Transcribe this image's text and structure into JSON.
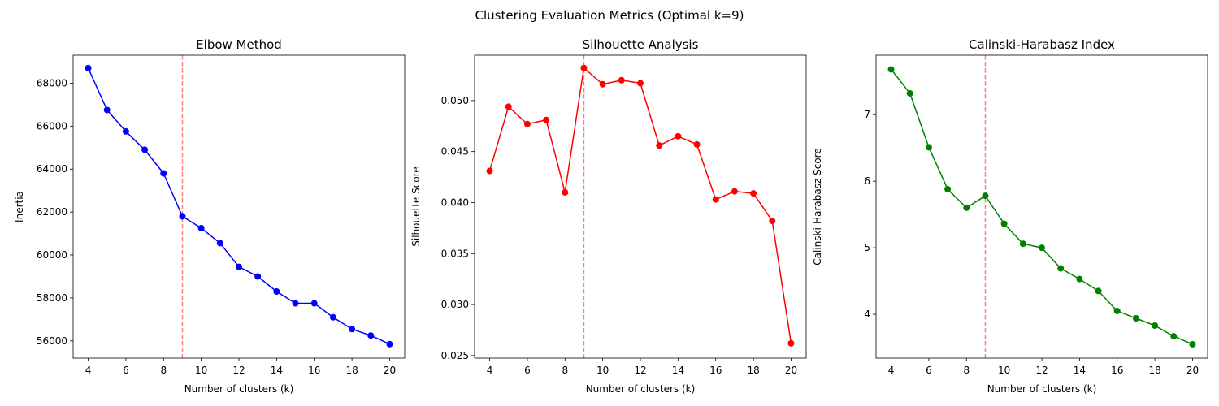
{
  "figure": {
    "suptitle": "Clustering Evaluation Metrics (Optimal k=9)"
  },
  "chart_data": [
    {
      "type": "line",
      "title": "Elbow Method",
      "xlabel": "Number of clusters (k)",
      "ylabel": "Inertia",
      "xlim": [
        3.2,
        20.8
      ],
      "ylim": [
        55200,
        69300
      ],
      "xticks": [
        4,
        6,
        8,
        10,
        12,
        14,
        16,
        18,
        20
      ],
      "yticks": [
        56000,
        58000,
        60000,
        62000,
        64000,
        66000,
        68000
      ],
      "ytick_labels": [
        "56000",
        "58000",
        "60000",
        "62000",
        "64000",
        "66000",
        "68000"
      ],
      "color": "#0000ff",
      "marker": "circle",
      "grid": false,
      "vline": {
        "x": 9,
        "color": "#ff0000"
      },
      "x": [
        4,
        5,
        6,
        7,
        8,
        9,
        10,
        11,
        12,
        13,
        14,
        15,
        16,
        17,
        18,
        19,
        20
      ],
      "y": [
        68700,
        66750,
        65750,
        64900,
        63800,
        61800,
        61250,
        60550,
        59450,
        59000,
        58300,
        57750,
        57750,
        57100,
        56550,
        56250,
        55850
      ]
    },
    {
      "type": "line",
      "title": "Silhouette Analysis",
      "xlabel": "Number of clusters (k)",
      "ylabel": "Silhouette Score",
      "xlim": [
        3.2,
        20.8
      ],
      "ylim": [
        0.02475,
        0.05445
      ],
      "xticks": [
        4,
        6,
        8,
        10,
        12,
        14,
        16,
        18,
        20
      ],
      "yticks": [
        0.025,
        0.03,
        0.035,
        0.04,
        0.045,
        0.05
      ],
      "ytick_labels": [
        "0.025",
        "0.030",
        "0.035",
        "0.040",
        "0.045",
        "0.050"
      ],
      "color": "#ff0000",
      "marker": "circle",
      "grid": false,
      "vline": {
        "x": 9,
        "color": "#ff0000"
      },
      "x": [
        4,
        5,
        6,
        7,
        8,
        9,
        10,
        11,
        12,
        13,
        14,
        15,
        16,
        17,
        18,
        19,
        20
      ],
      "y": [
        0.0431,
        0.0494,
        0.0477,
        0.0481,
        0.041,
        0.0532,
        0.0516,
        0.052,
        0.0517,
        0.0456,
        0.0465,
        0.0457,
        0.0403,
        0.0411,
        0.0409,
        0.0382,
        0.0262
      ]
    },
    {
      "type": "line",
      "title": "Calinski-Harabasz Index",
      "xlabel": "Number of clusters (k)",
      "ylabel": "Calinski-Harabasz Score",
      "xlim": [
        3.2,
        20.8
      ],
      "ylim": [
        3.342,
        7.893
      ],
      "xticks": [
        4,
        6,
        8,
        10,
        12,
        14,
        16,
        18,
        20
      ],
      "yticks": [
        4,
        5,
        6,
        7
      ],
      "ytick_labels": [
        "4",
        "5",
        "6",
        "7"
      ],
      "color": "#008000",
      "marker": "circle",
      "grid": false,
      "vline": {
        "x": 9,
        "color": "#ff0000"
      },
      "x": [
        4,
        5,
        6,
        7,
        8,
        9,
        10,
        11,
        12,
        13,
        14,
        15,
        16,
        17,
        18,
        19,
        20
      ],
      "y": [
        7.68,
        7.32,
        6.51,
        5.88,
        5.6,
        5.78,
        5.36,
        5.06,
        5.0,
        4.69,
        4.53,
        4.35,
        4.05,
        3.94,
        3.83,
        3.67,
        3.55
      ]
    }
  ]
}
